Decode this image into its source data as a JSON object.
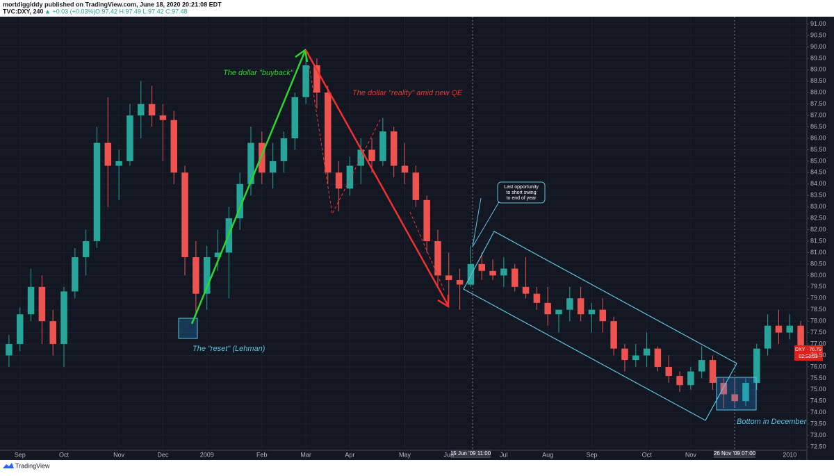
{
  "header": {
    "author_line": "mortdiggiddy published on TradingView.com, June 18, 2020 20:21:08 EDT",
    "symbol": "TVC:DXY, 240",
    "change": "▲ +0.03 (+0.03%)",
    "ohlc": "O:97.42 H:97.49 L:97.42 C:97.48"
  },
  "footer": {
    "brand": "TradingView"
  },
  "chart_data": {
    "type": "candlestick",
    "categories": [
      null,
      "Sep",
      null,
      null,
      null,
      "Oct",
      null,
      null,
      null,
      null,
      "Nov",
      null,
      null,
      null,
      "Dec",
      null,
      null,
      null,
      "2009",
      null,
      null,
      null,
      null,
      "Feb",
      null,
      null,
      null,
      "Mar",
      null,
      null,
      null,
      "Apr",
      null,
      null,
      null,
      null,
      "May",
      null,
      null,
      null,
      "Jun",
      null,
      null,
      null,
      null,
      "Jul",
      null,
      null,
      null,
      "Aug",
      null,
      null,
      null,
      "Sep",
      null,
      null,
      null,
      null,
      "Oct",
      null,
      null,
      null,
      "Nov",
      null,
      null,
      null,
      null,
      null,
      null,
      null,
      null,
      "2010",
      null
    ],
    "open": [
      76.5,
      77.0,
      78.3,
      79.5,
      78.0,
      77.0,
      79.3,
      80.8,
      81.5,
      85.8,
      84.8,
      85.0,
      87.0,
      87.5,
      87.0,
      86.8,
      84.5,
      80.8,
      79.2,
      80.8,
      81.0,
      82.5,
      84.0,
      85.8,
      84.5,
      85.0,
      86.0,
      87.8,
      89.2,
      88.0,
      84.5,
      83.8,
      84.8,
      85.5,
      85.0,
      86.3,
      84.8,
      84.5,
      83.3,
      81.5,
      80.0,
      79.8,
      79.6,
      80.5,
      80.2,
      80.0,
      80.3,
      79.5,
      79.2,
      78.8,
      78.3,
      78.5,
      79.0,
      78.3,
      78.5,
      78.0,
      76.8,
      76.3,
      76.5,
      76.8,
      76.0,
      75.6,
      75.2,
      75.8,
      76.3,
      75.3,
      74.8,
      74.5,
      75.3,
      76.8,
      77.8,
      77.5,
      77.8
    ],
    "high": [
      77.4,
      78.6,
      80.3,
      80.0,
      78.5,
      79.5,
      81.2,
      82.0,
      86.5,
      87.8,
      85.5,
      87.5,
      88.5,
      88.3,
      87.5,
      87.2,
      84.8,
      81.5,
      81.3,
      82.0,
      83.0,
      84.5,
      86.5,
      86.3,
      85.8,
      86.3,
      88.0,
      89.8,
      89.5,
      88.3,
      85.0,
      85.2,
      86.0,
      86.0,
      86.9,
      86.5,
      85.8,
      84.8,
      83.5,
      82.0,
      81.0,
      80.3,
      81.3,
      81.0,
      80.7,
      80.8,
      80.5,
      80.8,
      79.5,
      79.5,
      78.5,
      79.5,
      79.5,
      78.8,
      79.0,
      78.2,
      77.0,
      77.0,
      77.5,
      76.9,
      76.5,
      75.8,
      76.0,
      76.9,
      76.5,
      75.5,
      75.5,
      75.5,
      77.0,
      78.3,
      78.5,
      78.3,
      78.0
    ],
    "low": [
      76.0,
      76.7,
      78.0,
      77.0,
      76.5,
      76.0,
      79.0,
      80.0,
      81.2,
      83.0,
      83.3,
      84.8,
      86.0,
      86.5,
      85.0,
      84.0,
      80.0,
      78.2,
      78.5,
      80.2,
      79.0,
      82.0,
      83.5,
      84.0,
      83.8,
      84.5,
      85.5,
      87.5,
      87.3,
      84.0,
      82.8,
      83.5,
      84.0,
      84.5,
      84.8,
      84.3,
      84.0,
      83.0,
      81.0,
      79.5,
      78.8,
      78.5,
      79.5,
      79.8,
      79.8,
      79.5,
      79.3,
      79.0,
      78.5,
      77.8,
      77.5,
      78.0,
      78.0,
      77.5,
      77.5,
      76.5,
      75.8,
      76.0,
      76.0,
      75.8,
      75.3,
      74.9,
      75.0,
      75.5,
      75.0,
      74.2,
      74.2,
      74.3,
      75.0,
      76.5,
      77.0,
      77.2,
      76.5
    ],
    "close": [
      77.0,
      78.3,
      79.5,
      78.0,
      77.0,
      79.3,
      80.8,
      81.5,
      85.8,
      84.8,
      85.0,
      87.0,
      87.5,
      87.0,
      86.8,
      84.5,
      80.8,
      79.2,
      80.8,
      81.0,
      82.5,
      84.0,
      85.8,
      84.5,
      85.0,
      86.0,
      87.8,
      89.2,
      88.0,
      84.5,
      83.8,
      84.8,
      85.5,
      85.0,
      86.3,
      84.8,
      84.5,
      83.3,
      81.5,
      80.0,
      79.8,
      79.6,
      80.5,
      80.2,
      80.0,
      80.3,
      79.5,
      79.2,
      78.8,
      78.3,
      78.5,
      79.0,
      78.3,
      78.5,
      78.0,
      76.8,
      76.3,
      76.5,
      76.8,
      76.0,
      75.6,
      75.2,
      75.8,
      76.3,
      75.3,
      74.8,
      74.5,
      75.3,
      76.8,
      77.8,
      77.5,
      77.8,
      76.8
    ],
    "up_color": "#26a69a",
    "down_color": "#ef5350",
    "ylim": [
      72.35,
      91.2
    ],
    "yticks": [
      {
        "value": 72.5,
        "label": "72.50"
      },
      {
        "value": 73,
        "label": "73.00"
      },
      {
        "value": 73.5,
        "label": "73.50"
      },
      {
        "value": 74,
        "label": "74.00"
      },
      {
        "value": 74.5,
        "label": "74.50"
      },
      {
        "value": 75,
        "label": "75.00"
      },
      {
        "value": 75.5,
        "label": "75.50"
      },
      {
        "value": 76,
        "label": "76.00"
      },
      {
        "value": 76.5,
        "label": "76.50"
      },
      {
        "value": 77,
        "label": "77.00"
      },
      {
        "value": 77.5,
        "label": "77.50"
      },
      {
        "value": 78,
        "label": "78.00"
      },
      {
        "value": 78.5,
        "label": "78.50"
      },
      {
        "value": 79,
        "label": "79.00"
      },
      {
        "value": 79.5,
        "label": "79.50"
      },
      {
        "value": 80,
        "label": "80.00"
      },
      {
        "value": 80.5,
        "label": "80.50"
      },
      {
        "value": 81,
        "label": "81.00"
      },
      {
        "value": 81.5,
        "label": "81.50"
      },
      {
        "value": 82,
        "label": "82.00"
      },
      {
        "value": 82.5,
        "label": "82.50"
      },
      {
        "value": 83,
        "label": "83.00"
      },
      {
        "value": 83.5,
        "label": "83.50"
      },
      {
        "value": 84,
        "label": "84.00"
      },
      {
        "value": 84.5,
        "label": "84.50"
      },
      {
        "value": 85,
        "label": "85.00"
      },
      {
        "value": 85.5,
        "label": "85.50"
      },
      {
        "value": 86,
        "label": "86.00"
      },
      {
        "value": 86.5,
        "label": "86.50"
      },
      {
        "value": 87,
        "label": "87.00"
      },
      {
        "value": 87.5,
        "label": "87.50"
      },
      {
        "value": 88,
        "label": "88.00"
      },
      {
        "value": 88.5,
        "label": "88.50"
      },
      {
        "value": 89,
        "label": "89.00"
      },
      {
        "value": 89.5,
        "label": "89.50"
      },
      {
        "value": 90,
        "label": "90.00"
      },
      {
        "value": 90.5,
        "label": "90.50"
      },
      {
        "value": 91,
        "label": "91.00"
      }
    ],
    "grid": true,
    "annotations": {
      "buyback": "The dollar \"buyback\"",
      "reality": "The dollar \"reality\" amid new QE",
      "reset": "The \"reset\" (Lehman)",
      "bottom": "Bottom in December",
      "callout": [
        "Last opportunity",
        "to short swing",
        "to end of year"
      ],
      "cursor_1": "15 Jun '09   11:00",
      "cursor_2": "26 Nov '09   07:00",
      "last_price": "DXY · 76.79",
      "countdown": "02:38:53"
    }
  }
}
